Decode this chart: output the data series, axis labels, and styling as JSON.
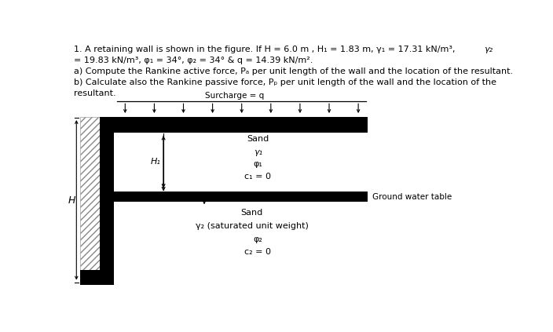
{
  "title_line1": "1. A retaining wall is shown in the figure. If H = 6.0 m , H₁ = 1.83 m, γ₁ = 17.31 kN/m³,",
  "title_line1_right": "γ₂",
  "title_line2": "= 19.83 kN/m³, φ₁ = 34°, φ₂ = 34° & q = 14.39 kN/m².",
  "title_line3": "a) Compute the Rankine active force, Pₐ per unit length of the wall and the location of the resultant.",
  "title_line4": "b) Calculate also the Rankine passive force, Pₚ per unit length of the wall and the location of the",
  "title_line5": "resultant.",
  "surcharge_label": "Surcharge = q",
  "sand_label_top": "Sand",
  "gamma1_label": "γ₁",
  "phi1_label": "φ₁",
  "c1_label": "c₁ = 0",
  "gwt_label": "Ground water table",
  "H1_label": "H₁",
  "H_label": "H",
  "sand_label_bot": "Sand",
  "gamma2_label": "γ₂ (saturated unit weight)",
  "phi2_label": "φ₂",
  "c2_label": "c₂ = 0",
  "bg_color": "#ffffff",
  "text_color": "#000000",
  "wall_color": "#000000"
}
